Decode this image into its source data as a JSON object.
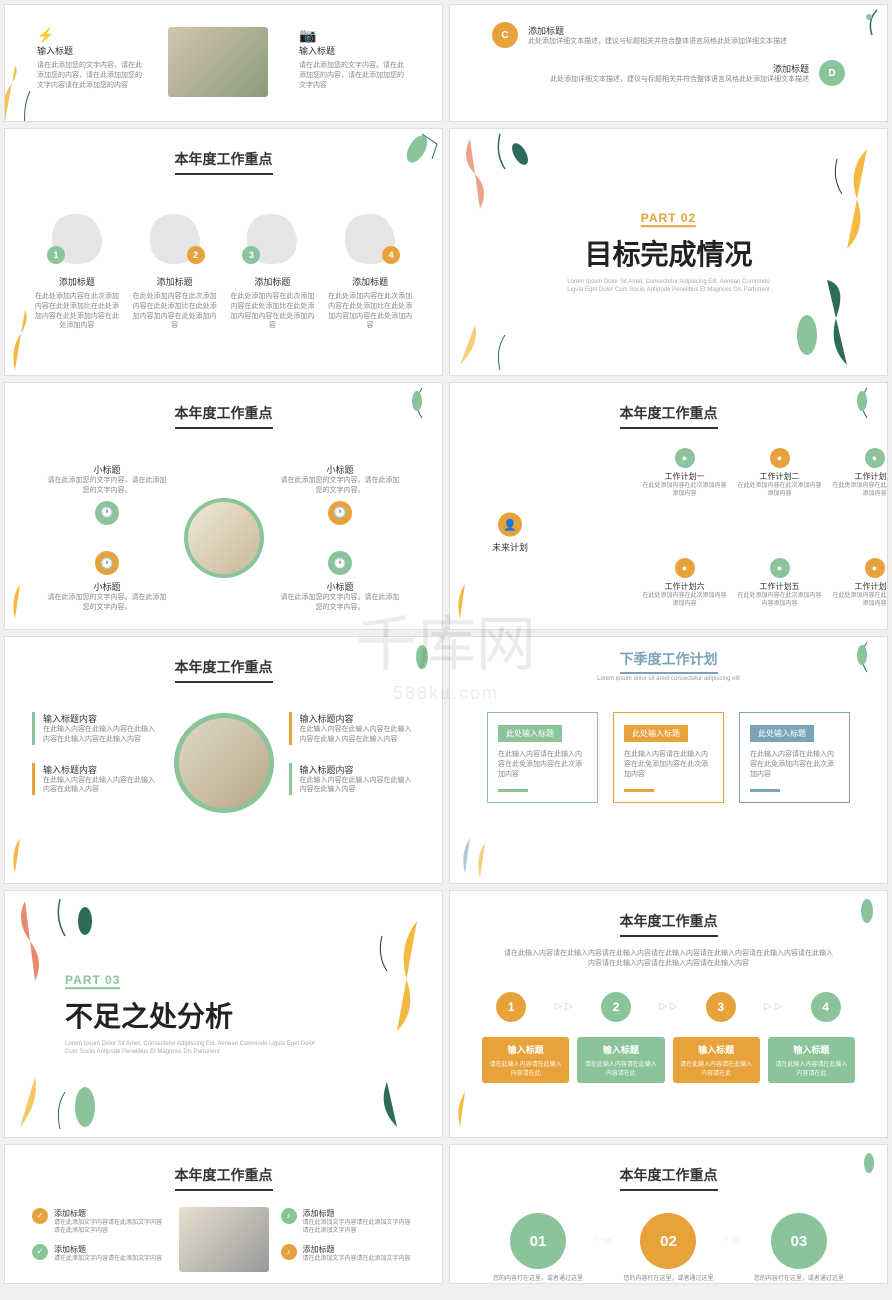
{
  "colors": {
    "orange": "#e8a23c",
    "green": "#8bc49a",
    "darkgreen": "#2d6b5a",
    "coral": "#e8896b",
    "blue": "#7ba4b8",
    "yellow": "#f4b942",
    "gray": "#e5e5e5"
  },
  "common": {
    "title": "本年度工作重点",
    "subtitle_lorem": "Lorem ipsum dolor sit amet consectetur adipiscing elit"
  },
  "s1": {
    "col1_title": "输入标题",
    "col1_body": "请在此添加您的文字内容。请在此添加您的内容，请在此添加加您的文字内容请在此添加您的内容",
    "col2_title": "输入标题",
    "col2_body": "请在此添加您的文字内容。请在此添加您的内容，请在此添加加您的文字内容"
  },
  "s2": {
    "c_title": "添加标题",
    "c_body": "此处添加详细文本描述，建议与标题相关并符合整体语言风格此处添加详细文本描述",
    "d_title": "添加标题",
    "d_body": "此处添加详细文本描述，建议与标题相关并符合整体语言风格此处添加详细文本描述"
  },
  "s3": {
    "items": [
      {
        "num": "1",
        "title": "添加标题",
        "body": "在此处添加内容在此次添加内容在此处添加比在此处添加内容在此处添加内容在此处添加内容",
        "color": "#8bc49a"
      },
      {
        "num": "2",
        "title": "添加标题",
        "body": "在此处添加内容在此次添加内容在此处添加比在此处添加内容加内容在此处添加内容",
        "color": "#e8a23c"
      },
      {
        "num": "3",
        "title": "添加标题",
        "body": "在此处添加内容在此次添加内容在此处添加比在此处添加内容加内容在此处添加内容",
        "color": "#8bc49a"
      },
      {
        "num": "4",
        "title": "添加标题",
        "body": "在此处添加内容在此次添加内容在此处添加比在此处添加内容加内容在此处添加内容",
        "color": "#e8a23c"
      }
    ]
  },
  "s4": {
    "part": "PART 02",
    "title": "目标完成情况",
    "sub": "Lorem Ipsum Dolor Sit Amet, Consectetur Adipiscing Elit. Aenean Commodo Ligula Eget Dolor Cum Sociis Antipode Penelibus Et Magnoss Dis Parturient"
  },
  "s5": {
    "items": [
      {
        "title": "小标题",
        "body": "请在此添加您的文字内容。请在此添加您的文字内容。",
        "color": "#8bc49a"
      },
      {
        "title": "小标题",
        "body": "请在此添加您的文字内容。请在此添加您的文字内容。",
        "color": "#e8a23c"
      },
      {
        "title": "小标题",
        "body": "请在此添加您的文字内容。请在此添加您的文字内容。",
        "color": "#e8a23c"
      },
      {
        "title": "小标题",
        "body": "请在此添加您的文字内容。请在此添加您的文字内容。",
        "color": "#8bc49a"
      }
    ]
  },
  "s6": {
    "center": "未来计划",
    "plans": [
      {
        "title": "工作计划一",
        "body": "在此处添加内容在此次添加内容添加内容",
        "color": "#8bc49a"
      },
      {
        "title": "工作计划二",
        "body": "在此处添加内容在此次添加内容添加内容",
        "color": "#e8a23c"
      },
      {
        "title": "工作计划三",
        "body": "在此免添加内容在此次添加内容添加内容",
        "color": "#8bc49a"
      },
      {
        "title": "工作计划四",
        "body": "在此处添加内容在此次添加内容添加内容",
        "color": "#e8a23c"
      },
      {
        "title": "工作计划五",
        "body": "在此处添加内容在此次添加内容内容添加内容",
        "color": "#8bc49a"
      },
      {
        "title": "工作计划六",
        "body": "在此处添加内容在此次添加内容添加内容",
        "color": "#e8a23c"
      }
    ]
  },
  "s7": {
    "left": [
      {
        "title": "输入标题内容",
        "body": "在此输入内容在此输入内容在此输入内容在此输入内容在此输入内容",
        "color": "#8bc49a"
      },
      {
        "title": "输入标题内容",
        "body": "在此输入内容在此输入内容在此输入内容在此输入内容",
        "color": "#e8a23c"
      }
    ],
    "right": [
      {
        "title": "输入标题内容",
        "body": "在此输入内容在此输入内容在此输入内容在此输入内容在此输入内容",
        "color": "#e8a23c"
      },
      {
        "title": "输入标题内容",
        "body": "在此输入内容在此输入内容在此输入内容在此输入内容",
        "color": "#8bc49a"
      }
    ]
  },
  "s8": {
    "title": "下季度工作计划",
    "subtitle": "Lorem ipsum dolor sit amet consectetur adipiscing elit",
    "cards": [
      {
        "title": "此处输入标题",
        "body": "在此输入内容请在此输入内容在此免添加内容在此次添加内容",
        "color": "#8bc49a"
      },
      {
        "title": "此处输入标题",
        "body": "在此输入内容请在此输入内容在此免添加内容在此次添加内容",
        "color": "#e8a23c"
      },
      {
        "title": "此处输入标题",
        "body": "在此输入内容请在此输入内容在此免添加内容在此次添加内容",
        "color": "#7ba4b8"
      }
    ]
  },
  "s9": {
    "part": "PART 03",
    "title": "不足之处分析",
    "sub": "Lorem Ipsum Dolor Sit Amet, Consectetur Adipiscing Elit. Aenean Commodo Ligula Eget Dolor Cum Sociis Antipode Penelibus Et Magnoss Dis Parturient"
  },
  "s10": {
    "desc": "请在此输入内容请在此输入内容请在此输入内容请在此输入内容请在此输入内容请在此输入内容请在此输入内容请在此输入内容请在此输入内容请在此输入内容",
    "steps": [
      {
        "num": "1",
        "title": "输入标题",
        "body": "请在此输入内容请在此输入内容请在此",
        "color": "#e8a23c"
      },
      {
        "num": "2",
        "title": "输入标题",
        "body": "请在此输入内容请在此输入内容请在此",
        "color": "#8bc49a"
      },
      {
        "num": "3",
        "title": "输入标题",
        "body": "请在此输入内容请在此输入内容请在此",
        "color": "#e8a23c"
      },
      {
        "num": "4",
        "title": "输入标题",
        "body": "请在此输入内容请在此输入内容请在此",
        "color": "#8bc49a"
      }
    ]
  },
  "s11": {
    "items": [
      {
        "title": "添加标题",
        "body": "请在此添加文字内容请在此添加文字内容请在此添加文字内容",
        "color": "#e8a23c"
      },
      {
        "title": "添加标题",
        "body": "请在此添加文字内容请在此添加文字内容",
        "color": "#8bc49a"
      },
      {
        "title": "添加标题",
        "body": "请在此添加文字内容请在此添加文字内容请在此添加文字内容",
        "color": "#8bc49a"
      },
      {
        "title": "添加标题",
        "body": "请在此添加文字内容请在此添加文字内容",
        "color": "#e8a23c"
      }
    ]
  },
  "s12": {
    "circles": [
      {
        "num": "01",
        "color": "#8bc49a",
        "body": "您的内容打在这里，或者通过这里复制出"
      },
      {
        "num": "02",
        "color": "#e8a23c",
        "body": "您的内容打在这里，或者通过这里复制出"
      },
      {
        "num": "03",
        "color": "#8bc49a",
        "body": "您的内容打在这里，或者通过这里复制出"
      }
    ]
  },
  "watermark": {
    "main": "千库网",
    "sub": "588ku.com"
  }
}
